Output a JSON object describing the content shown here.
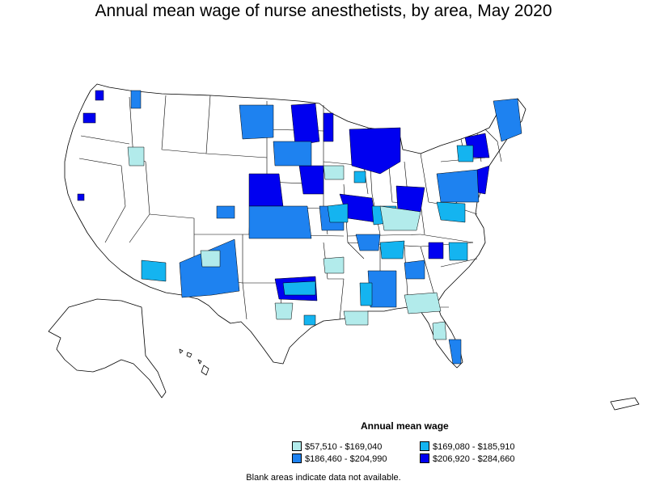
{
  "title": "Annual mean wage of nurse anesthetists, by area, May 2020",
  "legend": {
    "title": "Annual mean wage",
    "items": [
      {
        "label": "$57,510 - $169,040",
        "color": "#b2ebeb"
      },
      {
        "label": "$169,080 - $185,910",
        "color": "#14b4f0"
      },
      {
        "label": "$186,460 - $204,990",
        "color": "#1e82f0"
      },
      {
        "label": "$206,920 - $284,660",
        "color": "#0000f0"
      }
    ]
  },
  "footnote": "Blank areas indicate data not available."
}
